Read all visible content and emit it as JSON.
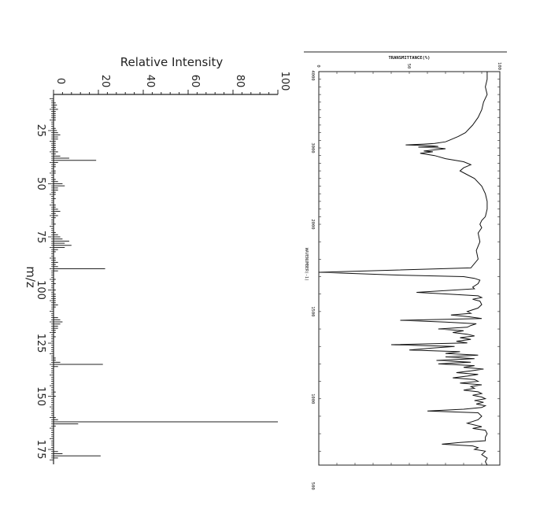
{
  "chart_data": [
    {
      "type": "bar",
      "orientation": "rotated-90",
      "ylabel": "Relative Intensity",
      "xlabel": "m/z",
      "ylim": [
        0,
        100
      ],
      "xlim": [
        8,
        182
      ],
      "y_ticks": [
        "0",
        "20",
        "40",
        "60",
        "80",
        "100"
      ],
      "x_ticks": [
        "25",
        "50",
        "75",
        "100",
        "125",
        "150",
        "175"
      ],
      "peaks": [
        {
          "mz": 12,
          "intensity": 1
        },
        {
          "mz": 13,
          "intensity": 1.5
        },
        {
          "mz": 14,
          "intensity": 1
        },
        {
          "mz": 15,
          "intensity": 2
        },
        {
          "mz": 16,
          "intensity": 1
        },
        {
          "mz": 17,
          "intensity": 1
        },
        {
          "mz": 18,
          "intensity": 1
        },
        {
          "mz": 19,
          "intensity": 1
        },
        {
          "mz": 20,
          "intensity": 1
        },
        {
          "mz": 24,
          "intensity": 1
        },
        {
          "mz": 25,
          "intensity": 1.5
        },
        {
          "mz": 26,
          "intensity": 2
        },
        {
          "mz": 27,
          "intensity": 3
        },
        {
          "mz": 28,
          "intensity": 2
        },
        {
          "mz": 29,
          "intensity": 2
        },
        {
          "mz": 30,
          "intensity": 1
        },
        {
          "mz": 31,
          "intensity": 1
        },
        {
          "mz": 32,
          "intensity": 1
        },
        {
          "mz": 33,
          "intensity": 1
        },
        {
          "mz": 34,
          "intensity": 1
        },
        {
          "mz": 35,
          "intensity": 2
        },
        {
          "mz": 36,
          "intensity": 1
        },
        {
          "mz": 37,
          "intensity": 3
        },
        {
          "mz": 38,
          "intensity": 7
        },
        {
          "mz": 39,
          "intensity": 19
        },
        {
          "mz": 40,
          "intensity": 2
        },
        {
          "mz": 41,
          "intensity": 1
        },
        {
          "mz": 42,
          "intensity": 1
        },
        {
          "mz": 44,
          "intensity": 1
        },
        {
          "mz": 45,
          "intensity": 1
        },
        {
          "mz": 48,
          "intensity": 1
        },
        {
          "mz": 49,
          "intensity": 2
        },
        {
          "mz": 50,
          "intensity": 4
        },
        {
          "mz": 51,
          "intensity": 5
        },
        {
          "mz": 52,
          "intensity": 2
        },
        {
          "mz": 53,
          "intensity": 2
        },
        {
          "mz": 54,
          "intensity": 1
        },
        {
          "mz": 55,
          "intensity": 1
        },
        {
          "mz": 57,
          "intensity": 1
        },
        {
          "mz": 60,
          "intensity": 1
        },
        {
          "mz": 61,
          "intensity": 1
        },
        {
          "mz": 62,
          "intensity": 2
        },
        {
          "mz": 63,
          "intensity": 3
        },
        {
          "mz": 64,
          "intensity": 1
        },
        {
          "mz": 65,
          "intensity": 2
        },
        {
          "mz": 66,
          "intensity": 1
        },
        {
          "mz": 69,
          "intensity": 1
        },
        {
          "mz": 73,
          "intensity": 1
        },
        {
          "mz": 74,
          "intensity": 2
        },
        {
          "mz": 75,
          "intensity": 3
        },
        {
          "mz": 76,
          "intensity": 4
        },
        {
          "mz": 77,
          "intensity": 7
        },
        {
          "mz": 78,
          "intensity": 5
        },
        {
          "mz": 79,
          "intensity": 8
        },
        {
          "mz": 80,
          "intensity": 5
        },
        {
          "mz": 81,
          "intensity": 2
        },
        {
          "mz": 82,
          "intensity": 1
        },
        {
          "mz": 85,
          "intensity": 1
        },
        {
          "mz": 86,
          "intensity": 1
        },
        {
          "mz": 87,
          "intensity": 2
        },
        {
          "mz": 88,
          "intensity": 1
        },
        {
          "mz": 89,
          "intensity": 2
        },
        {
          "mz": 90,
          "intensity": 23
        },
        {
          "mz": 91,
          "intensity": 2
        },
        {
          "mz": 95,
          "intensity": 1
        },
        {
          "mz": 97,
          "intensity": 1
        },
        {
          "mz": 100,
          "intensity": 1
        },
        {
          "mz": 102,
          "intensity": 1
        },
        {
          "mz": 103,
          "intensity": 1
        },
        {
          "mz": 104,
          "intensity": 1
        },
        {
          "mz": 105,
          "intensity": 1
        },
        {
          "mz": 106,
          "intensity": 1
        },
        {
          "mz": 107,
          "intensity": 2
        },
        {
          "mz": 108,
          "intensity": 1
        },
        {
          "mz": 113,
          "intensity": 2
        },
        {
          "mz": 114,
          "intensity": 3
        },
        {
          "mz": 115,
          "intensity": 4
        },
        {
          "mz": 116,
          "intensity": 3
        },
        {
          "mz": 117,
          "intensity": 2
        },
        {
          "mz": 118,
          "intensity": 2
        },
        {
          "mz": 119,
          "intensity": 1
        },
        {
          "mz": 120,
          "intensity": 1
        },
        {
          "mz": 122,
          "intensity": 1
        },
        {
          "mz": 132,
          "intensity": 1
        },
        {
          "mz": 133,
          "intensity": 1
        },
        {
          "mz": 134,
          "intensity": 3
        },
        {
          "mz": 135,
          "intensity": 22
        },
        {
          "mz": 136,
          "intensity": 2
        },
        {
          "mz": 148,
          "intensity": 1
        },
        {
          "mz": 150,
          "intensity": 1
        },
        {
          "mz": 160,
          "intensity": 1
        },
        {
          "mz": 161,
          "intensity": 2
        },
        {
          "mz": 162,
          "intensity": 100
        },
        {
          "mz": 163,
          "intensity": 11
        },
        {
          "mz": 164,
          "intensity": 1
        },
        {
          "mz": 176,
          "intensity": 2
        },
        {
          "mz": 177,
          "intensity": 4
        },
        {
          "mz": 178,
          "intensity": 21
        },
        {
          "mz": 179,
          "intensity": 2
        }
      ]
    },
    {
      "type": "line",
      "orientation": "rotated-90",
      "title": "TRANSMITTANCE(%)",
      "xlabel": "WAVENUMBER(-1)",
      "ylim": [
        0,
        100
      ],
      "y_ticks": [
        "0",
        "50",
        "100"
      ],
      "xlim": [
        4000,
        620
      ],
      "x_ticks": [
        "4000",
        "3000",
        "2000",
        "1500",
        "1000",
        "500"
      ],
      "x_tick_values": [
        4000,
        3000,
        2000,
        1500,
        1000,
        500
      ],
      "x_scale": "two-segment, scale change at 2000",
      "series": [
        {
          "points": [
            [
              4000,
              93
            ],
            [
              3900,
              93
            ],
            [
              3800,
              92
            ],
            [
              3700,
              93
            ],
            [
              3600,
              91
            ],
            [
              3500,
              90
            ],
            [
              3400,
              88
            ],
            [
              3300,
              85
            ],
            [
              3200,
              81
            ],
            [
              3150,
              77
            ],
            [
              3100,
              72
            ],
            [
              3080,
              70
            ],
            [
              3060,
              64
            ],
            [
              3050,
              58
            ],
            [
              3040,
              48
            ],
            [
              3030,
              62
            ],
            [
              3020,
              66
            ],
            [
              3010,
              55
            ],
            [
              3000,
              66
            ],
            [
              2990,
              70
            ],
            [
              2960,
              58
            ],
            [
              2950,
              63
            ],
            [
              2930,
              56
            ],
            [
              2900,
              64
            ],
            [
              2860,
              70
            ],
            [
              2820,
              80
            ],
            [
              2780,
              84
            ],
            [
              2740,
              80
            ],
            [
              2700,
              78
            ],
            [
              2650,
              82
            ],
            [
              2600,
              86
            ],
            [
              2500,
              90
            ],
            [
              2400,
              92
            ],
            [
              2300,
              93
            ],
            [
              2200,
              93
            ],
            [
              2100,
              92
            ],
            [
              2050,
              90
            ],
            [
              2000,
              89
            ],
            [
              1980,
              90
            ],
            [
              1950,
              88
            ],
            [
              1900,
              89
            ],
            [
              1850,
              87
            ],
            [
              1800,
              88
            ],
            [
              1750,
              84
            ],
            [
              1725,
              0
            ],
            [
              1710,
              40
            ],
            [
              1700,
              80
            ],
            [
              1690,
              86
            ],
            [
              1680,
              89
            ],
            [
              1660,
              88
            ],
            [
              1640,
              85
            ],
            [
              1630,
              86
            ],
            [
              1610,
              54
            ],
            [
              1600,
              72
            ],
            [
              1590,
              88
            ],
            [
              1580,
              90
            ],
            [
              1570,
              85
            ],
            [
              1560,
              89
            ],
            [
              1540,
              90
            ],
            [
              1520,
              88
            ],
            [
              1500,
              82
            ],
            [
              1490,
              84
            ],
            [
              1480,
              73
            ],
            [
              1470,
              83
            ],
            [
              1460,
              90
            ],
            [
              1450,
              45
            ],
            [
              1440,
              70
            ],
            [
              1430,
              87
            ],
            [
              1420,
              84
            ],
            [
              1410,
              82
            ],
            [
              1400,
              66
            ],
            [
              1390,
              80
            ],
            [
              1380,
              74
            ],
            [
              1370,
              82
            ],
            [
              1360,
              86
            ],
            [
              1350,
              78
            ],
            [
              1340,
              84
            ],
            [
              1330,
              76
            ],
            [
              1320,
              82
            ],
            [
              1310,
              40
            ],
            [
              1300,
              75
            ],
            [
              1290,
              62
            ],
            [
              1280,
              50
            ],
            [
              1270,
              78
            ],
            [
              1260,
              70
            ],
            [
              1250,
              88
            ],
            [
              1240,
              70
            ],
            [
              1230,
              86
            ],
            [
              1220,
              65
            ],
            [
              1210,
              84
            ],
            [
              1200,
              66
            ],
            [
              1190,
              86
            ],
            [
              1180,
              80
            ],
            [
              1170,
              91
            ],
            [
              1160,
              84
            ],
            [
              1150,
              76
            ],
            [
              1140,
              88
            ],
            [
              1130,
              82
            ],
            [
              1120,
              74
            ],
            [
              1110,
              86
            ],
            [
              1100,
              88
            ],
            [
              1090,
              78
            ],
            [
              1080,
              90
            ],
            [
              1070,
              84
            ],
            [
              1060,
              86
            ],
            [
              1050,
              80
            ],
            [
              1040,
              88
            ],
            [
              1030,
              90
            ],
            [
              1020,
              85
            ],
            [
              1010,
              90
            ],
            [
              1000,
              92
            ],
            [
              990,
              86
            ],
            [
              980,
              91
            ],
            [
              970,
              87
            ],
            [
              960,
              92
            ],
            [
              950,
              90
            ],
            [
              940,
              80
            ],
            [
              930,
              60
            ],
            [
              920,
              88
            ],
            [
              900,
              90
            ],
            [
              880,
              88
            ],
            [
              860,
              82
            ],
            [
              850,
              86
            ],
            [
              840,
              90
            ],
            [
              830,
              85
            ],
            [
              820,
              92
            ],
            [
              800,
              93
            ],
            [
              780,
              92
            ],
            [
              760,
              92
            ],
            [
              750,
              78
            ],
            [
              740,
              68
            ],
            [
              730,
              85
            ],
            [
              720,
              88
            ],
            [
              710,
              86
            ],
            [
              700,
              92
            ],
            [
              680,
              90
            ],
            [
              660,
              93
            ],
            [
              640,
              92
            ],
            [
              620,
              93
            ]
          ]
        }
      ]
    }
  ]
}
